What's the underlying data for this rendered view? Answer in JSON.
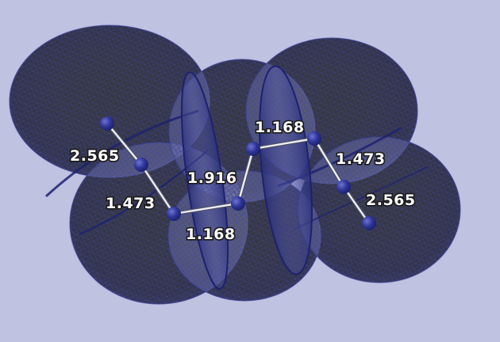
{
  "colors": {
    "background": "#bfc2e0",
    "mesh": "#4a4fa8",
    "atom": "#2e3597",
    "bond": "#e8e8ee"
  },
  "labels": {
    "left_outer": "2.565",
    "left_middle": "1.473",
    "center": "1.916",
    "bottom": "1.168",
    "top": "1.168",
    "right_middle": "1.473",
    "right_outer": "2.565"
  }
}
